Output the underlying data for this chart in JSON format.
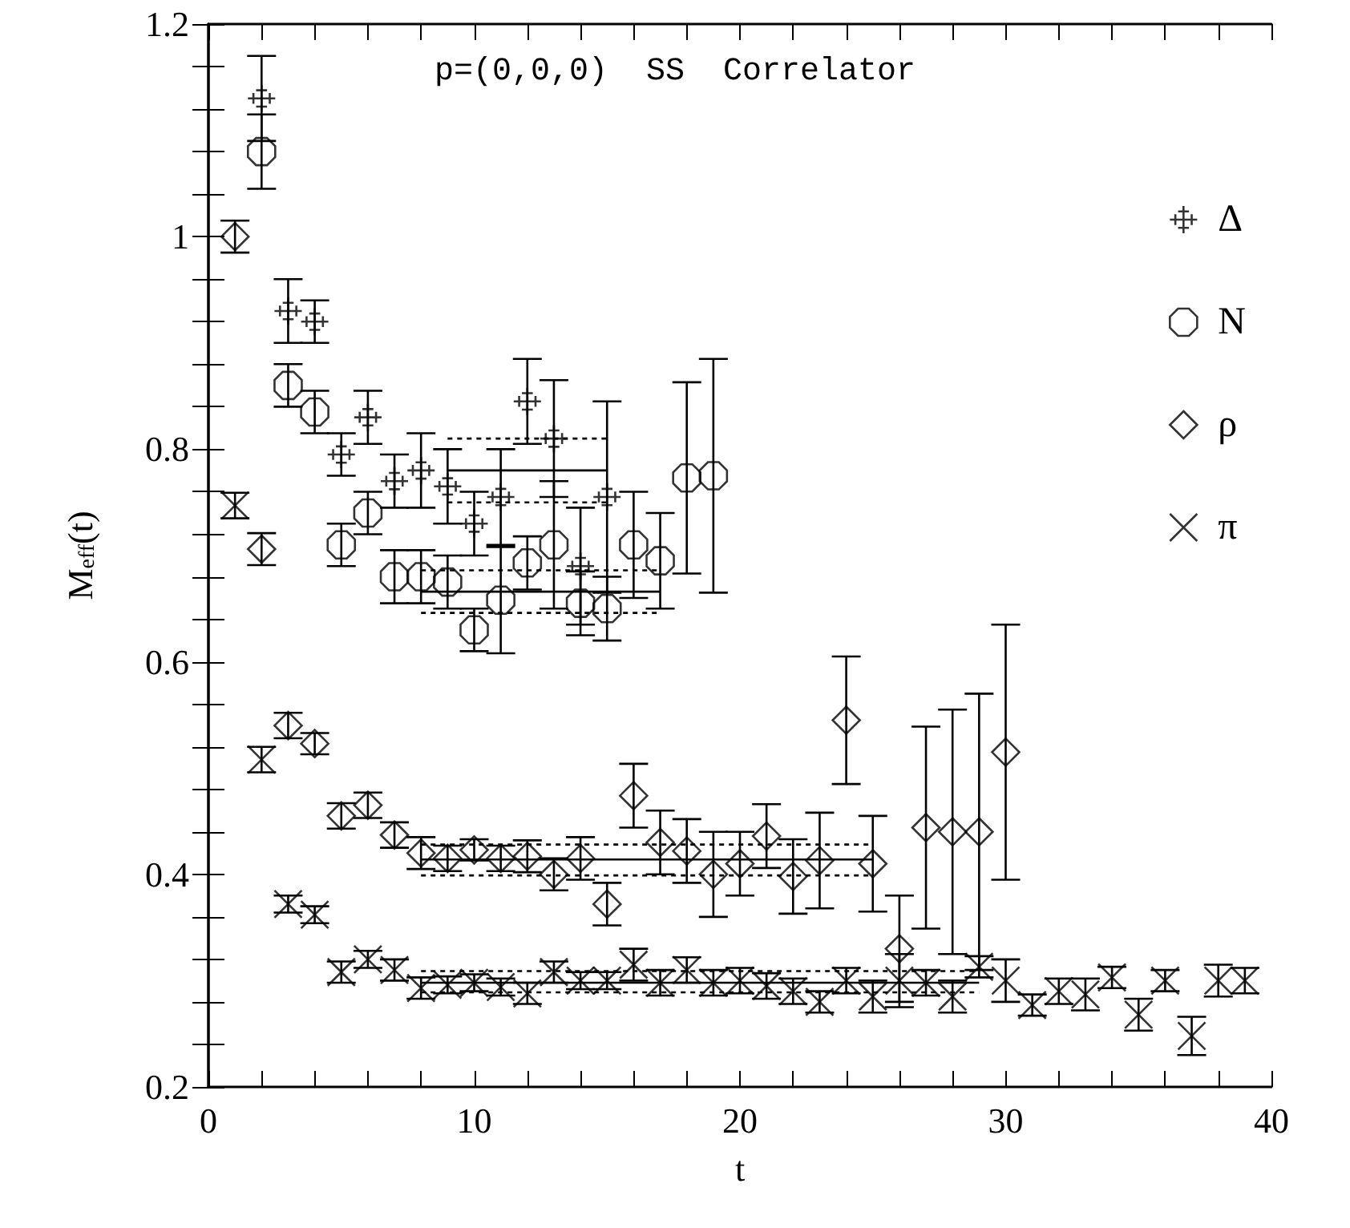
{
  "chart_data": {
    "type": "scatter",
    "title": "p=(0,0,0)  SS  Correlator",
    "xlabel": "t",
    "ylabel": "M$_{eff}$(t)",
    "xlim": [
      0,
      40
    ],
    "ylim": [
      0.2,
      1.2
    ],
    "xticks": [
      0,
      {
        "value": 2,
        "label": null
      },
      {
        "value": 4,
        "label": null
      },
      {
        "value": 6,
        "label": null
      },
      {
        "value": 8,
        "label": null
      },
      10,
      {
        "value": 12,
        "label": null
      },
      {
        "value": 14,
        "label": null
      },
      {
        "value": 16,
        "label": null
      },
      {
        "value": 18,
        "label": null
      },
      20,
      {
        "value": 22,
        "label": null
      },
      {
        "value": 24,
        "label": null
      },
      {
        "value": 26,
        "label": null
      },
      {
        "value": 28,
        "label": null
      },
      30,
      {
        "value": 32,
        "label": null
      },
      {
        "value": 34,
        "label": null
      },
      {
        "value": 36,
        "label": null
      },
      {
        "value": 38,
        "label": null
      },
      40
    ],
    "yticks": [
      0.2,
      {
        "value": 0.24,
        "label": null
      },
      {
        "value": 0.28,
        "label": null
      },
      {
        "value": 0.32,
        "label": null
      },
      {
        "value": 0.36,
        "label": null
      },
      0.4,
      {
        "value": 0.44,
        "label": null
      },
      {
        "value": 0.48,
        "label": null
      },
      {
        "value": 0.52,
        "label": null
      },
      {
        "value": 0.56,
        "label": null
      },
      0.6,
      {
        "value": 0.64,
        "label": null
      },
      {
        "value": 0.68,
        "label": null
      },
      {
        "value": 0.72,
        "label": null
      },
      {
        "value": 0.76,
        "label": null
      },
      0.8,
      {
        "value": 0.84,
        "label": null
      },
      {
        "value": 0.88,
        "label": null
      },
      {
        "value": 0.92,
        "label": null
      },
      {
        "value": 0.96,
        "label": null
      },
      1,
      {
        "value": 1.04,
        "label": null
      },
      {
        "value": 1.08,
        "label": null
      },
      {
        "value": 1.12,
        "label": null
      },
      {
        "value": 1.16,
        "label": null
      },
      1.2
    ],
    "grid": false,
    "legend": "top right",
    "series": [
      {
        "name": "Δ",
        "color": "#000000",
        "marker": "plus",
        "x": [
          2,
          3,
          4,
          5,
          6,
          7,
          8,
          9,
          10,
          11,
          12,
          13,
          14,
          15
        ],
        "values": [
          1.13,
          0.93,
          0.92,
          0.795,
          0.83,
          0.77,
          0.78,
          0.765,
          0.73,
          0.755,
          0.845,
          0.81,
          0.69,
          0.755
        ],
        "errors": [
          0.04,
          0.03,
          0.02,
          0.02,
          0.025,
          0.025,
          0.035,
          0.035,
          0.03,
          0.045,
          0.04,
          0.055,
          0.055,
          0.09
        ]
      },
      {
        "name": "N",
        "color": "#000000",
        "marker": "circle",
        "x": [
          2,
          3,
          4,
          5,
          6,
          7,
          8,
          9,
          10,
          11,
          12,
          13,
          14,
          15,
          16,
          17,
          18,
          19
        ],
        "values": [
          1.08,
          0.86,
          0.835,
          0.71,
          0.74,
          0.68,
          0.68,
          0.675,
          0.63,
          0.658,
          0.693,
          0.71,
          0.655,
          0.65,
          0.71,
          0.695,
          0.773,
          0.775
        ],
        "errors": [
          0.035,
          0.02,
          0.02,
          0.02,
          0.02,
          0.025,
          0.025,
          0.025,
          0.02,
          0.05,
          0.025,
          0.06,
          0.03,
          0.03,
          0.05,
          0.045,
          0.09,
          0.11
        ]
      },
      {
        "name": "ρ",
        "color": "#000000",
        "marker": "diamond",
        "x": [
          1,
          2,
          3,
          4,
          5,
          6,
          7,
          8,
          9,
          10,
          11,
          12,
          13,
          14,
          15,
          16,
          17,
          18,
          19,
          20,
          21,
          22,
          23,
          24,
          25,
          26,
          27,
          28,
          29,
          30
        ],
        "values": [
          1.0,
          0.706,
          0.54,
          0.523,
          0.455,
          0.465,
          0.437,
          0.42,
          0.415,
          0.423,
          0.415,
          0.417,
          0.4,
          0.415,
          0.372,
          0.474,
          0.43,
          0.422,
          0.4,
          0.41,
          0.436,
          0.398,
          0.413,
          0.545,
          0.41,
          0.33,
          0.444,
          0.44,
          0.44,
          0.515
        ],
        "errors": [
          0.015,
          0.015,
          0.012,
          0.01,
          0.012,
          0.012,
          0.012,
          0.015,
          0.012,
          0.01,
          0.012,
          0.015,
          0.015,
          0.02,
          0.02,
          0.03,
          0.03,
          0.03,
          0.04,
          0.03,
          0.03,
          0.035,
          0.045,
          0.06,
          0.045,
          0.05,
          0.095,
          0.115,
          0.13,
          0.12
        ]
      },
      {
        "name": "π",
        "color": "#000000",
        "marker": "cross",
        "x": [
          1,
          2,
          3,
          4,
          5,
          6,
          7,
          8,
          9,
          10,
          11,
          12,
          13,
          14,
          15,
          16,
          17,
          18,
          19,
          20,
          21,
          22,
          23,
          24,
          25,
          26,
          27,
          28,
          29,
          30,
          31,
          32,
          33,
          34,
          35,
          36,
          37,
          38,
          39
        ],
        "values": [
          0.747,
          0.508,
          0.372,
          0.362,
          0.308,
          0.32,
          0.31,
          0.293,
          0.296,
          0.298,
          0.294,
          0.288,
          0.308,
          0.3,
          0.3,
          0.315,
          0.298,
          0.31,
          0.298,
          0.3,
          0.295,
          0.29,
          0.28,
          0.3,
          0.285,
          0.3,
          0.298,
          0.285,
          0.313,
          0.3,
          0.277,
          0.29,
          0.287,
          0.303,
          0.268,
          0.3,
          0.248,
          0.3,
          0.3
        ],
        "errors": [
          0.012,
          0.012,
          0.008,
          0.008,
          0.01,
          0.008,
          0.01,
          0.01,
          0.008,
          0.008,
          0.008,
          0.01,
          0.01,
          0.008,
          0.008,
          0.015,
          0.012,
          0.012,
          0.012,
          0.012,
          0.012,
          0.012,
          0.01,
          0.012,
          0.015,
          0.025,
          0.012,
          0.015,
          0.01,
          0.02,
          0.01,
          0.012,
          0.015,
          0.01,
          0.015,
          0.01,
          0.018,
          0.015,
          0.012
        ]
      },
      {
        "type": "line",
        "color": "#000000",
        "line_style": "solid",
        "x": [
          9,
          15
        ],
        "values": [
          0.78,
          0.78
        ]
      },
      {
        "type": "line",
        "color": "#000000",
        "line_style": "dashed",
        "x": [
          9,
          15
        ],
        "values": [
          0.81,
          0.81
        ]
      },
      {
        "type": "line",
        "color": "#000000",
        "line_style": "dashed",
        "x": [
          9,
          15
        ],
        "values": [
          0.75,
          0.75
        ]
      },
      {
        "type": "line",
        "color": "#000000",
        "line_style": "solid",
        "x": [
          8,
          17
        ],
        "values": [
          0.666,
          0.666
        ]
      },
      {
        "type": "line",
        "color": "#000000",
        "line_style": "dashed",
        "x": [
          8,
          17
        ],
        "values": [
          0.686,
          0.686
        ]
      },
      {
        "type": "line",
        "color": "#000000",
        "line_style": "dashed",
        "x": [
          8,
          17
        ],
        "values": [
          0.646,
          0.646
        ]
      },
      {
        "type": "line",
        "color": "#000000",
        "line_style": "solid",
        "x": [
          8,
          25
        ],
        "values": [
          0.414,
          0.414
        ]
      },
      {
        "type": "line",
        "color": "#000000",
        "line_style": "dashed",
        "x": [
          8,
          25
        ],
        "values": [
          0.428,
          0.428
        ]
      },
      {
        "type": "line",
        "color": "#000000",
        "line_style": "dashed",
        "x": [
          8,
          25
        ],
        "values": [
          0.399,
          0.399
        ]
      },
      {
        "type": "line",
        "color": "#000000",
        "line_style": "solid",
        "x": [
          8,
          29
        ],
        "values": [
          0.298,
          0.298
        ]
      },
      {
        "type": "line",
        "color": "#000000",
        "line_style": "dashed",
        "x": [
          8,
          29
        ],
        "values": [
          0.309,
          0.309
        ]
      },
      {
        "type": "line",
        "color": "#000000",
        "line_style": "dashed",
        "x": [
          8,
          29
        ],
        "values": [
          0.289,
          0.289
        ]
      }
    ]
  }
}
